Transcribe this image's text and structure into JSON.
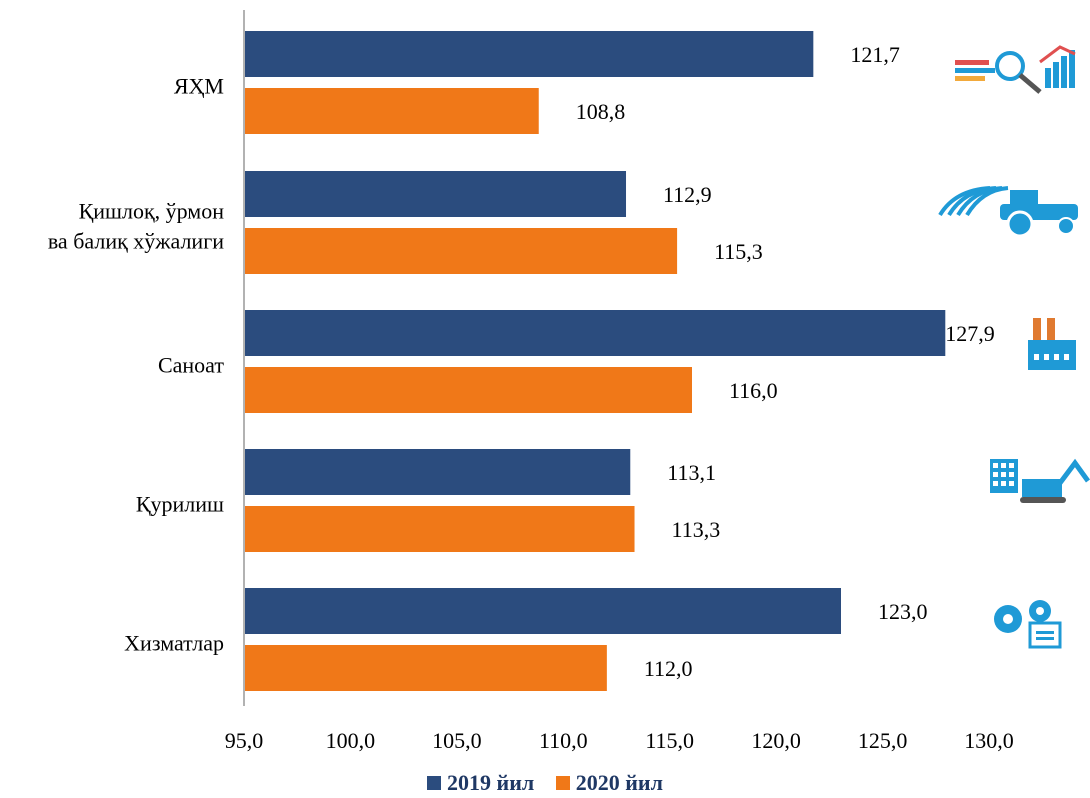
{
  "chart_data": {
    "type": "bar",
    "orientation": "horizontal",
    "categories": [
      "ЯҲМ",
      "Қишлоқ, ўрмон ва балиқ хўжалиги",
      "Саноат",
      "Қурилиш",
      "Хизматлар"
    ],
    "category_lines": [
      [
        "ЯҲМ"
      ],
      [
        "Қишлоқ, ўрмон",
        "ва балиқ хўжалиги"
      ],
      [
        "Саноат"
      ],
      [
        "Қурилиш"
      ],
      [
        "Хизматлар"
      ]
    ],
    "series": [
      {
        "name": "2019 йил",
        "color": "#2b4c7e",
        "values": [
          121.7,
          112.9,
          127.9,
          113.1,
          123.0
        ],
        "labels": [
          "121,7",
          "112,9",
          "127,9",
          "113,1",
          "123,0"
        ]
      },
      {
        "name": "2020 йил",
        "color": "#f07818",
        "values": [
          108.8,
          115.3,
          116.0,
          113.3,
          112.0
        ],
        "labels": [
          "108,8",
          "115,3",
          "116,0",
          "113,3",
          "112,0"
        ]
      }
    ],
    "xlim": [
      95,
      130
    ],
    "x_ticks": [
      "95,0",
      "100,0",
      "105,0",
      "110,0",
      "115,0",
      "120,0",
      "125,0",
      "130,0"
    ],
    "x_tick_values": [
      95,
      100,
      105,
      110,
      115,
      120,
      125,
      130
    ],
    "icons": [
      "gdp-chart-icon",
      "tractor-icon",
      "factory-icon",
      "excavator-icon",
      "gear-services-icon"
    ],
    "accent_color": "#1f9ad6",
    "grid": false,
    "legend_position": "bottom"
  }
}
